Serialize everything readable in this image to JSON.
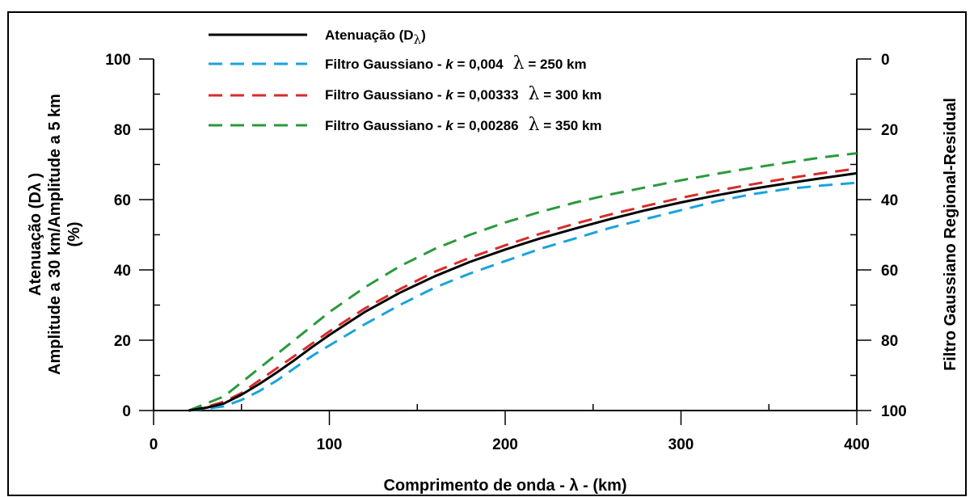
{
  "chart_data": {
    "type": "line",
    "title": "",
    "xlabel": "Comprimento de onda - λ - (km)",
    "ylabel_left": [
      "Atenuação (Dλ )",
      "Amplitude a 30 km/Amplitude a 5 km",
      "(%)"
    ],
    "ylabel_right": "Filtro Gaussiano Regional-Residual",
    "xlim": [
      0,
      400
    ],
    "ylim_left": [
      0,
      100
    ],
    "ylim_right": [
      100,
      0
    ],
    "x_ticks": [
      "0",
      "100",
      "200",
      "300",
      "400"
    ],
    "y_ticks_left": [
      "0",
      "20",
      "40",
      "60",
      "80",
      "100"
    ],
    "y_ticks_right": [
      "100",
      "80",
      "60",
      "40",
      "20",
      "0"
    ],
    "grid": false,
    "legend_position": "top-left",
    "series": [
      {
        "name": "Atenuação (Dλ)",
        "legend": {
          "prefix": "Atenuação (D",
          "sub": "λ",
          "suffix": ")"
        },
        "color": "#000000",
        "style": "solid",
        "x": [
          20,
          30,
          40,
          50,
          60,
          70,
          80,
          90,
          100,
          120,
          140,
          160,
          180,
          200,
          220,
          240,
          260,
          280,
          300,
          320,
          340,
          360,
          380,
          400
        ],
        "y": [
          0,
          0.8,
          2,
          4.5,
          7.5,
          10.8,
          14.3,
          18,
          21.5,
          28,
          33.5,
          38.2,
          42.3,
          45.8,
          49,
          51.8,
          54.5,
          57,
          59.2,
          61.2,
          63,
          64.6,
          66.1,
          67.5
        ]
      },
      {
        "name": "Filtro Gaussiano - k = 0,004 λ = 250 km",
        "legend": {
          "prefix": "Filtro Gaussiano - ",
          "k": "k",
          "kval": " = 0,004",
          "lam": "λ",
          "suffix": " = 250 km"
        },
        "color": "#1aa3dc",
        "style": "dashed",
        "x": [
          20,
          30,
          40,
          50,
          60,
          70,
          80,
          90,
          100,
          120,
          140,
          160,
          180,
          200,
          220,
          240,
          260,
          280,
          300,
          320,
          340,
          360,
          380,
          400
        ],
        "y": [
          0,
          0.5,
          1.2,
          3,
          5.5,
          8.5,
          12,
          15.5,
          18.5,
          24.5,
          30,
          35,
          39,
          42.5,
          46,
          49,
          52,
          54.5,
          57,
          59.5,
          61.5,
          63,
          64,
          64.8
        ]
      },
      {
        "name": "Filtro Gaussiano - k = 0,00333 λ = 300 km",
        "legend": {
          "prefix": "Filtro Gaussiano - ",
          "k": "k",
          "kval": " = 0,00333",
          "lam": "λ",
          "suffix": " = 300 km"
        },
        "color": "#d92b2b",
        "style": "dashed",
        "x": [
          20,
          30,
          40,
          50,
          60,
          70,
          80,
          90,
          100,
          120,
          140,
          160,
          180,
          200,
          220,
          240,
          260,
          280,
          300,
          320,
          340,
          360,
          380,
          400
        ],
        "y": [
          0,
          1,
          2.5,
          5,
          8.5,
          12,
          15.5,
          19,
          22.5,
          29,
          34.5,
          39.5,
          43.5,
          47,
          50.3,
          53.2,
          55.8,
          58.2,
          60.5,
          62.5,
          64.3,
          66,
          67.5,
          68.8
        ]
      },
      {
        "name": "Filtro Gaussiano - k = 0,00286 λ = 350 km",
        "legend": {
          "prefix": "Filtro Gaussiano - ",
          "k": "k",
          "kval": " = 0,00286",
          "lam": "λ",
          "suffix": " = 350 km"
        },
        "color": "#2a9a3c",
        "style": "dashed",
        "x": [
          20,
          30,
          40,
          50,
          60,
          70,
          80,
          90,
          100,
          120,
          140,
          160,
          180,
          200,
          220,
          240,
          260,
          280,
          300,
          320,
          340,
          360,
          380,
          400
        ],
        "y": [
          0,
          2,
          4,
          8,
          12,
          16,
          20,
          24,
          28,
          35,
          41,
          46,
          50,
          53.5,
          56.5,
          59.2,
          61.5,
          63.5,
          65.5,
          67.3,
          69,
          70.5,
          72,
          73.2
        ]
      }
    ]
  }
}
